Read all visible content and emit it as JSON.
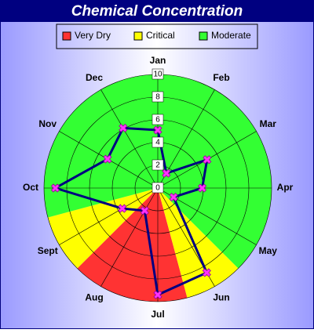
{
  "chart_data": {
    "type": "polar",
    "title": "Chemical Concentration",
    "categories": [
      "Jan",
      "Feb",
      "Mar",
      "Apr",
      "May",
      "Jun",
      "Jul",
      "Aug",
      "Sept",
      "Oct",
      "Nov",
      "Dec"
    ],
    "values": [
      5.1,
      1.5,
      5.0,
      3.9,
      1.6,
      8.6,
      9.4,
      2.3,
      3.6,
      9.0,
      5.1,
      6.1
    ],
    "color": "#000080",
    "marker_color": "#ff33ff",
    "xlim": [
      0,
      12
    ],
    "ylim": [
      0,
      10
    ],
    "yticks": [
      0,
      2,
      4,
      6,
      8,
      10
    ],
    "grid": true,
    "zones": [
      {
        "name": "Very Dry",
        "color": "#ff3333",
        "ranges": [
          [
            5.5,
            7.5
          ]
        ]
      },
      {
        "name": "Critical",
        "color": "#ffff00",
        "ranges": [
          [
            4.5,
            5.5
          ],
          [
            7.5,
            8.5
          ]
        ]
      },
      {
        "name": "Moderate",
        "color": "#33ff33",
        "ranges": [
          [
            8.5,
            12
          ],
          [
            0,
            4.5
          ]
        ]
      }
    ]
  }
}
